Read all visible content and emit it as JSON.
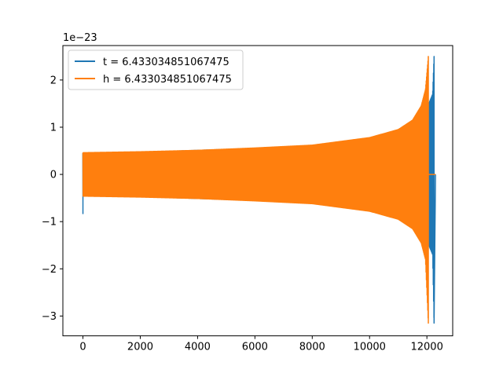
{
  "chart_data": {
    "type": "line",
    "title": "",
    "xlabel": "",
    "ylabel": "",
    "y_offset_text": "1e−23",
    "xlim": [
      -700,
      12900
    ],
    "ylim": [
      -3.42,
      2.73
    ],
    "xticks": [
      0,
      2000,
      4000,
      6000,
      8000,
      10000,
      12000
    ],
    "xtick_labels": [
      "0",
      "2000",
      "4000",
      "6000",
      "8000",
      "10000",
      "12000"
    ],
    "yticks": [
      2,
      1,
      0,
      -1,
      -2,
      -3
    ],
    "ytick_labels": [
      "2",
      "1",
      "0",
      "−1",
      "−2",
      "−3"
    ],
    "grid": false,
    "legend_position": "upper-left",
    "series": [
      {
        "name": "t = 6.433034851067475",
        "color": "#1f77b4",
        "envelope": {
          "x": [
            0,
            2000,
            4000,
            6000,
            8000,
            10000,
            11000,
            11500,
            11800,
            12000,
            12100,
            12200,
            12250
          ],
          "y_upper": [
            0.45,
            0.47,
            0.51,
            0.55,
            0.6,
            0.72,
            0.85,
            0.98,
            1.15,
            1.4,
            1.55,
            1.7,
            2.5
          ],
          "y_lower": [
            -0.45,
            -0.47,
            -0.51,
            -0.55,
            -0.6,
            -0.72,
            -0.85,
            -0.98,
            -1.15,
            -1.4,
            -1.55,
            -1.7,
            -3.15
          ]
        },
        "start_spike": {
          "x": 0,
          "y_min": -0.84,
          "y_max": 0.45
        },
        "end_x": 12300
      },
      {
        "name": "h = 6.433034851067475",
        "color": "#ff7f0e",
        "envelope": {
          "x": [
            0,
            2000,
            4000,
            6000,
            8000,
            10000,
            11000,
            11500,
            11800,
            11950,
            12050
          ],
          "y_upper": [
            0.46,
            0.48,
            0.51,
            0.56,
            0.62,
            0.78,
            0.95,
            1.15,
            1.45,
            1.8,
            2.5
          ],
          "y_lower": [
            -0.46,
            -0.48,
            -0.51,
            -0.56,
            -0.62,
            -0.78,
            -0.95,
            -1.15,
            -1.45,
            -1.8,
            -3.15
          ]
        },
        "tail": {
          "x_start": 12050,
          "x_end": 12300,
          "y": 0
        }
      }
    ]
  }
}
